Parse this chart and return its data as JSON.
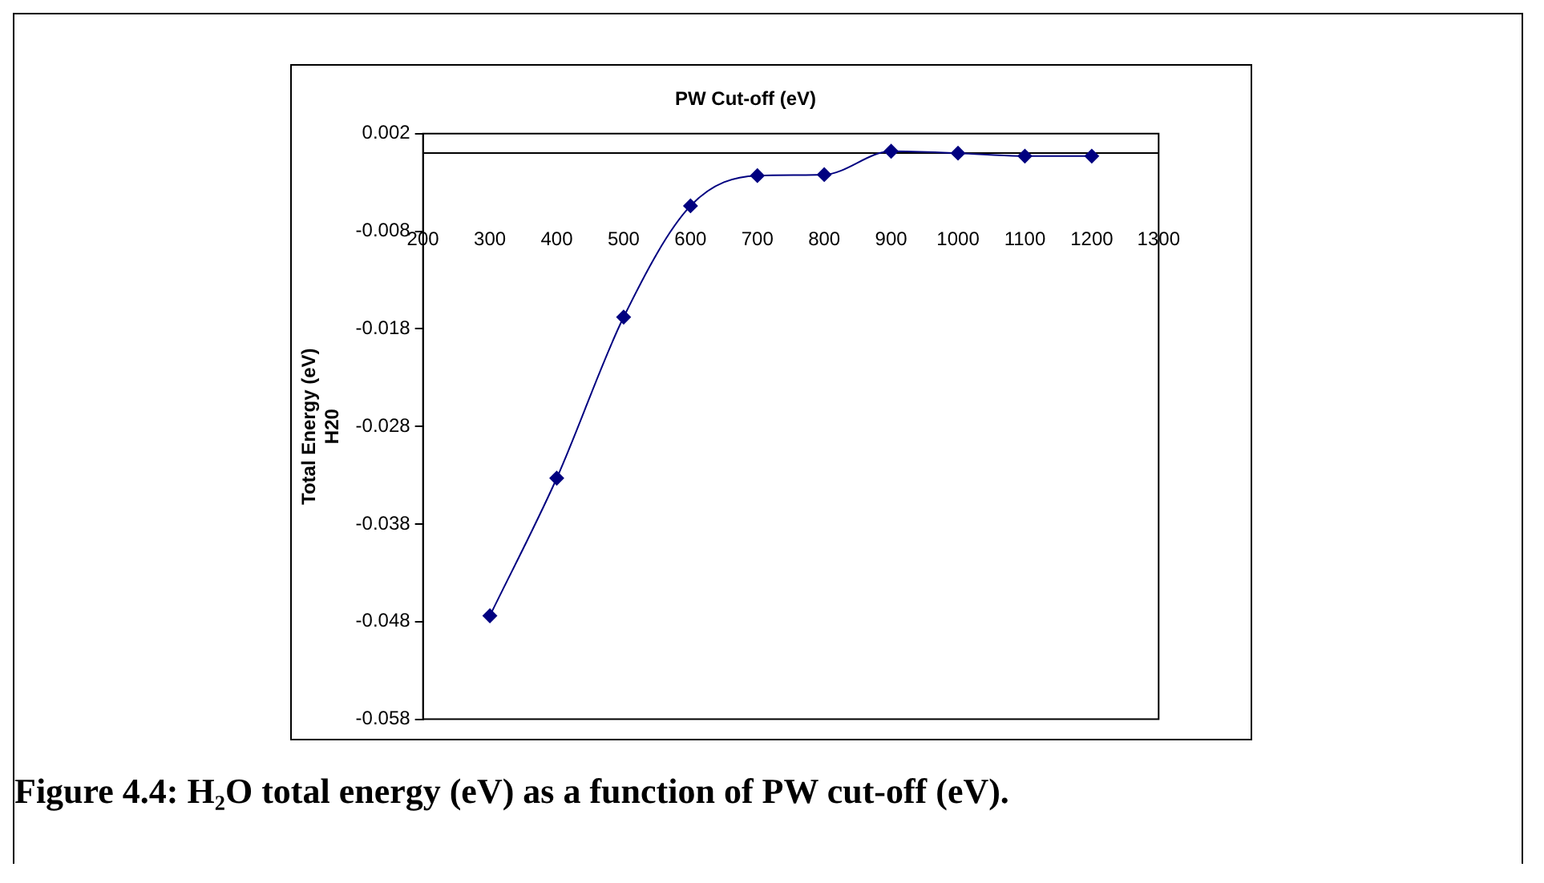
{
  "chart_data": {
    "type": "line",
    "xlabel": "PW Cut-off (eV)",
    "ylabel": "Total Energy (eV)\nH20",
    "annotations": [
      "Figure 4.4: H₂O total energy (eV) as a function of PW cut-off (eV)."
    ],
    "x": [
      300,
      400,
      500,
      600,
      700,
      800,
      900,
      1000,
      1100,
      1200
    ],
    "series": [
      {
        "color": "#000080",
        "values": [
          -0.0474,
          -0.0333,
          -0.0168,
          -0.0054,
          -0.0023,
          -0.0022,
          0.0002,
          0.0,
          -0.0003,
          -0.0003
        ]
      }
    ],
    "xlim": [
      200,
      1300
    ],
    "xticks": [
      200,
      300,
      400,
      500,
      600,
      700,
      800,
      900,
      1000,
      1100,
      1200,
      1300
    ],
    "ylim": [
      -0.058,
      0.002
    ],
    "yticks": [
      -0.058,
      -0.048,
      -0.038,
      -0.028,
      -0.018,
      -0.008,
      0.002
    ],
    "grid": false,
    "legend": false,
    "marker": "diamond",
    "line_style": "solid"
  }
}
